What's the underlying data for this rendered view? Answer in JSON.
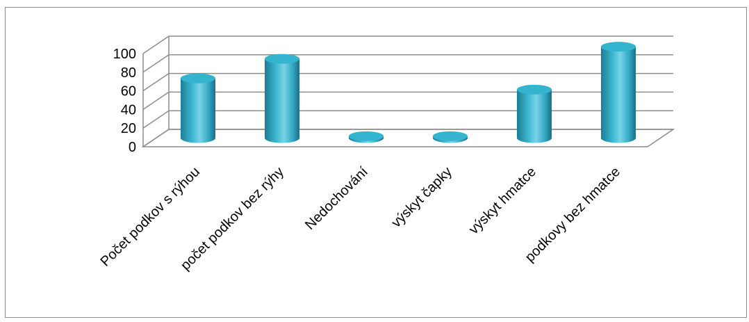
{
  "chart_data": {
    "type": "bar",
    "style": "3d-cylinder",
    "categories": [
      "Počet podkov s rýhou",
      "počet podkov bez rýhy",
      "Nedochování",
      "výskyt čapky",
      "výskyt hmatce",
      "podkovy bez hmatce"
    ],
    "values": [
      64,
      85,
      2,
      2,
      52,
      98
    ],
    "ylim": [
      0,
      100
    ],
    "yticks": [
      "0",
      "20",
      "40",
      "60",
      "80",
      "100"
    ],
    "grid": true,
    "legend": "none",
    "colors": {
      "bar": "#34b4cf",
      "bar_dark": "#1b7e95",
      "bar_light": "#7ad3e6",
      "grid": "#8c8c8c"
    }
  }
}
